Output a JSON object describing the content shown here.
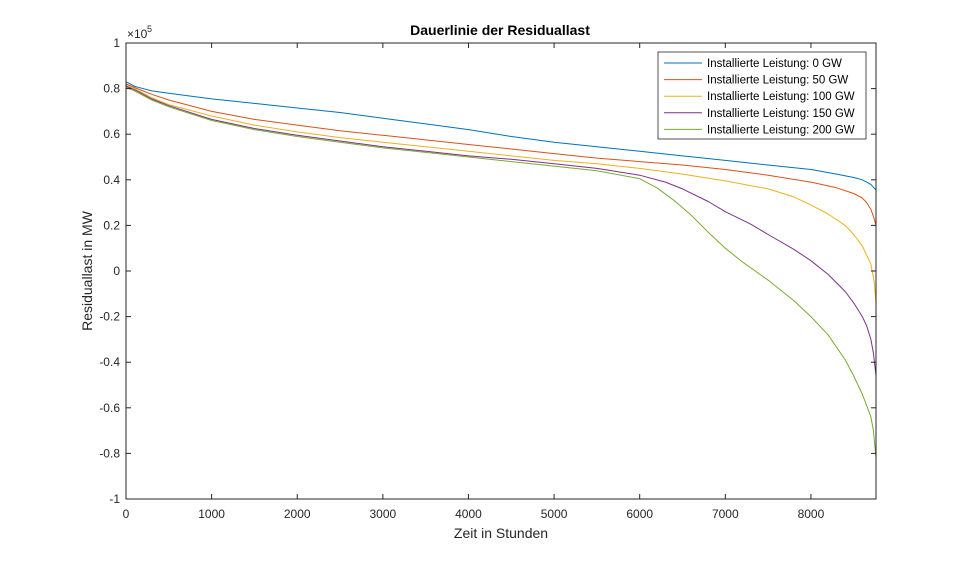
{
  "chart_data": {
    "type": "line",
    "title": "Dauerlinie der Residuallast",
    "xlabel": "Zeit in Stunden",
    "ylabel": "Residuallast in MW",
    "y_exponent_label": "×10",
    "y_exponent": "5",
    "xlim": [
      0,
      8760
    ],
    "ylim": [
      -100000,
      100000
    ],
    "x_ticks": [
      0,
      1000,
      2000,
      3000,
      4000,
      5000,
      6000,
      7000,
      8000
    ],
    "x_tick_labels": [
      "0",
      "1000",
      "2000",
      "3000",
      "4000",
      "5000",
      "6000",
      "7000",
      "8000"
    ],
    "y_ticks": [
      -100000,
      -80000,
      -60000,
      -40000,
      -20000,
      0,
      20000,
      40000,
      60000,
      80000,
      100000
    ],
    "y_tick_labels": [
      "-1",
      "-0.8",
      "-0.6",
      "-0.4",
      "-0.2",
      "0",
      "0.2",
      "0.4",
      "0.6",
      "0.8",
      "1"
    ],
    "grid": false,
    "legend_position": "top-right",
    "series": [
      {
        "name": "Installierte Leistung: 0 GW",
        "color": "#0072BD",
        "x": [
          0,
          100,
          300,
          500,
          1000,
          1500,
          2000,
          2500,
          3000,
          3500,
          4000,
          4500,
          5000,
          5500,
          6000,
          6500,
          7000,
          7500,
          8000,
          8300,
          8500,
          8600,
          8700,
          8760
        ],
        "y": [
          83000,
          81000,
          79000,
          78000,
          75500,
          73500,
          71500,
          69500,
          67000,
          64500,
          62000,
          59000,
          56500,
          54500,
          52500,
          50500,
          48500,
          46500,
          44500,
          42500,
          41000,
          40000,
          38000,
          35500
        ]
      },
      {
        "name": "Installierte Leistung: 50 GW",
        "color": "#D95319",
        "x": [
          0,
          100,
          300,
          500,
          1000,
          1500,
          2000,
          2500,
          3000,
          3500,
          4000,
          4500,
          5000,
          5500,
          6000,
          6500,
          7000,
          7500,
          8000,
          8300,
          8500,
          8600,
          8650,
          8700,
          8730,
          8760
        ],
        "y": [
          82000,
          80500,
          77500,
          75000,
          70000,
          66500,
          64000,
          61500,
          59500,
          57500,
          55500,
          53500,
          51500,
          49500,
          48000,
          46500,
          44500,
          42000,
          39000,
          36500,
          34000,
          32000,
          30000,
          27000,
          24000,
          20000
        ]
      },
      {
        "name": "Installierte Leistung: 100 GW",
        "color": "#EDB120",
        "x": [
          0,
          100,
          300,
          500,
          1000,
          1500,
          2000,
          2500,
          3000,
          3500,
          4000,
          4500,
          5000,
          5500,
          6000,
          6500,
          7000,
          7500,
          7800,
          8000,
          8200,
          8400,
          8500,
          8600,
          8700,
          8740,
          8760
        ],
        "y": [
          81500,
          80000,
          76000,
          73000,
          68000,
          64000,
          61000,
          58500,
          56500,
          54500,
          52500,
          50500,
          48500,
          47000,
          45000,
          42500,
          39500,
          36000,
          32500,
          29000,
          25000,
          20000,
          16000,
          11000,
          3000,
          -5000,
          -14000
        ]
      },
      {
        "name": "Installierte Leistung: 150 GW",
        "color": "#7E2F8E",
        "x": [
          0,
          100,
          300,
          500,
          1000,
          1500,
          2000,
          2500,
          3000,
          3500,
          4000,
          4500,
          5000,
          5500,
          6000,
          6300,
          6500,
          6800,
          7000,
          7300,
          7500,
          7800,
          8000,
          8200,
          8400,
          8500,
          8600,
          8650,
          8700,
          8730,
          8760
        ],
        "y": [
          81000,
          79500,
          75500,
          72500,
          66500,
          62500,
          59500,
          57000,
          54500,
          52500,
          50500,
          49000,
          47000,
          45000,
          42000,
          39000,
          36000,
          30500,
          26000,
          20500,
          16000,
          9500,
          4500,
          -1500,
          -9000,
          -14000,
          -20000,
          -24000,
          -30000,
          -36000,
          -46000
        ]
      },
      {
        "name": "Installierte Leistung: 200 GW",
        "color": "#77AC30",
        "x": [
          0,
          100,
          300,
          500,
          1000,
          1500,
          2000,
          2500,
          3000,
          3500,
          4000,
          4500,
          5000,
          5500,
          6000,
          6200,
          6400,
          6600,
          6800,
          7000,
          7200,
          7500,
          7800,
          8000,
          8200,
          8400,
          8500,
          8600,
          8650,
          8700,
          8730,
          8760
        ],
        "y": [
          80500,
          79000,
          75000,
          72000,
          66000,
          62000,
          59000,
          56500,
          54000,
          52000,
          50000,
          48000,
          46000,
          44000,
          40500,
          36500,
          31000,
          24500,
          17000,
          10000,
          4000,
          -4000,
          -13000,
          -20000,
          -28000,
          -39000,
          -46000,
          -54000,
          -59000,
          -64000,
          -70000,
          -82000
        ]
      }
    ]
  }
}
